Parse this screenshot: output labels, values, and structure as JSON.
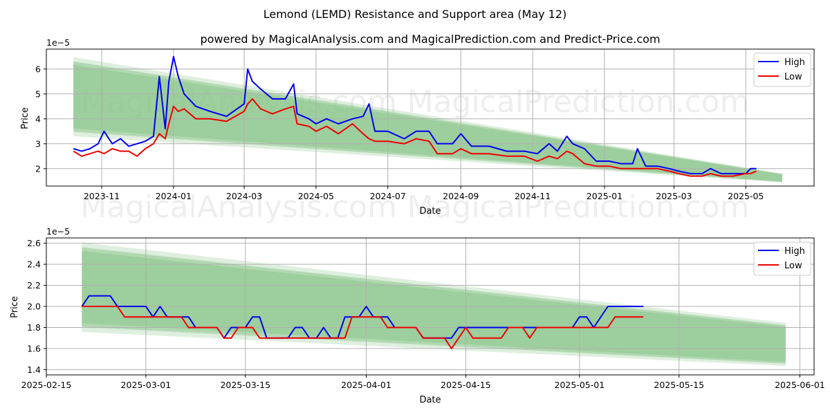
{
  "title": "Lemond (LEMD) Resistance and Support area (May 12)",
  "subtitle": "powered by MagicalAnalysis.com and MagicalPrediction.com and Predict-Price.com",
  "watermarks": [
    "MagicalAnalysis.com",
    "MagicalPrediction.com"
  ],
  "colors": {
    "high": "#0000ee",
    "low": "#ee0000",
    "band": "#8cc68c",
    "grid": "#b0b0b0"
  },
  "chart_data": [
    {
      "type": "line",
      "name": "full-period",
      "xlabel": "Date",
      "ylabel": "Price",
      "scale_label": "1e−5",
      "grid": true,
      "legend": "top-right",
      "xlim": [
        "2023-09-15",
        "2025-06-28"
      ],
      "ylim": [
        1.3,
        6.8
      ],
      "x_ticks": [
        "2023-11",
        "2024-01",
        "2024-03",
        "2024-05",
        "2024-07",
        "2024-09",
        "2024-11",
        "2025-01",
        "2025-03",
        "2025-05"
      ],
      "y_ticks": [
        2,
        3,
        4,
        5,
        6
      ],
      "band": {
        "x_start": "2023-10-08",
        "x_end": "2025-06-01",
        "upper": [
          6.45,
          1.8
        ],
        "lower": [
          3.35,
          1.45
        ]
      },
      "series": [
        {
          "name": "High",
          "color": "#0000ee",
          "points": [
            [
              "2023-10-08",
              2.8
            ],
            [
              "2023-10-15",
              2.7
            ],
            [
              "2023-10-22",
              2.8
            ],
            [
              "2023-10-29",
              3.0
            ],
            [
              "2023-11-03",
              3.5
            ],
            [
              "2023-11-10",
              3.0
            ],
            [
              "2023-11-17",
              3.2
            ],
            [
              "2023-11-24",
              2.9
            ],
            [
              "2023-12-01",
              3.0
            ],
            [
              "2023-12-08",
              3.1
            ],
            [
              "2023-12-15",
              3.3
            ],
            [
              "2023-12-20",
              5.7
            ],
            [
              "2023-12-25",
              3.6
            ],
            [
              "2023-12-28",
              5.5
            ],
            [
              "2024-01-01",
              6.5
            ],
            [
              "2024-01-05",
              5.7
            ],
            [
              "2024-01-10",
              5.0
            ],
            [
              "2024-01-20",
              4.5
            ],
            [
              "2024-02-01",
              4.3
            ],
            [
              "2024-02-15",
              4.1
            ],
            [
              "2024-03-01",
              4.6
            ],
            [
              "2024-03-04",
              6.0
            ],
            [
              "2024-03-08",
              5.5
            ],
            [
              "2024-03-15",
              5.2
            ],
            [
              "2024-03-25",
              4.8
            ],
            [
              "2024-04-05",
              4.8
            ],
            [
              "2024-04-12",
              5.4
            ],
            [
              "2024-04-15",
              4.2
            ],
            [
              "2024-04-25",
              4.0
            ],
            [
              "2024-05-01",
              3.8
            ],
            [
              "2024-05-10",
              4.0
            ],
            [
              "2024-05-20",
              3.8
            ],
            [
              "2024-06-01",
              4.0
            ],
            [
              "2024-06-10",
              4.1
            ],
            [
              "2024-06-15",
              4.6
            ],
            [
              "2024-06-20",
              3.5
            ],
            [
              "2024-07-01",
              3.5
            ],
            [
              "2024-07-15",
              3.2
            ],
            [
              "2024-07-25",
              3.5
            ],
            [
              "2024-08-05",
              3.5
            ],
            [
              "2024-08-12",
              3.0
            ],
            [
              "2024-08-25",
              3.0
            ],
            [
              "2024-09-01",
              3.4
            ],
            [
              "2024-09-10",
              2.9
            ],
            [
              "2024-09-25",
              2.9
            ],
            [
              "2024-10-10",
              2.7
            ],
            [
              "2024-10-25",
              2.7
            ],
            [
              "2024-11-05",
              2.6
            ],
            [
              "2024-11-15",
              3.0
            ],
            [
              "2024-11-22",
              2.7
            ],
            [
              "2024-11-30",
              3.3
            ],
            [
              "2024-12-05",
              3.0
            ],
            [
              "2024-12-15",
              2.8
            ],
            [
              "2024-12-25",
              2.3
            ],
            [
              "2025-01-05",
              2.3
            ],
            [
              "2025-01-15",
              2.2
            ],
            [
              "2025-01-25",
              2.2
            ],
            [
              "2025-01-29",
              2.8
            ],
            [
              "2025-02-05",
              2.1
            ],
            [
              "2025-02-15",
              2.1
            ],
            [
              "2025-02-25",
              2.0
            ],
            [
              "2025-03-05",
              1.9
            ],
            [
              "2025-03-15",
              1.8
            ],
            [
              "2025-03-25",
              1.8
            ],
            [
              "2025-04-01",
              2.0
            ],
            [
              "2025-04-10",
              1.8
            ],
            [
              "2025-04-20",
              1.8
            ],
            [
              "2025-05-01",
              1.8
            ],
            [
              "2025-05-05",
              2.0
            ],
            [
              "2025-05-10",
              2.0
            ]
          ]
        },
        {
          "name": "Low",
          "color": "#ee0000",
          "points": [
            [
              "2023-10-08",
              2.7
            ],
            [
              "2023-10-15",
              2.5
            ],
            [
              "2023-10-22",
              2.6
            ],
            [
              "2023-10-29",
              2.7
            ],
            [
              "2023-11-03",
              2.6
            ],
            [
              "2023-11-10",
              2.8
            ],
            [
              "2023-11-17",
              2.7
            ],
            [
              "2023-11-24",
              2.7
            ],
            [
              "2023-12-01",
              2.5
            ],
            [
              "2023-12-08",
              2.8
            ],
            [
              "2023-12-15",
              3.0
            ],
            [
              "2023-12-20",
              3.4
            ],
            [
              "2023-12-25",
              3.2
            ],
            [
              "2023-12-28",
              3.8
            ],
            [
              "2024-01-01",
              4.5
            ],
            [
              "2024-01-05",
              4.3
            ],
            [
              "2024-01-10",
              4.4
            ],
            [
              "2024-01-20",
              4.0
            ],
            [
              "2024-02-01",
              4.0
            ],
            [
              "2024-02-15",
              3.9
            ],
            [
              "2024-03-01",
              4.3
            ],
            [
              "2024-03-04",
              4.6
            ],
            [
              "2024-03-08",
              4.8
            ],
            [
              "2024-03-15",
              4.4
            ],
            [
              "2024-03-25",
              4.2
            ],
            [
              "2024-04-05",
              4.4
            ],
            [
              "2024-04-12",
              4.5
            ],
            [
              "2024-04-15",
              3.8
            ],
            [
              "2024-04-25",
              3.7
            ],
            [
              "2024-05-01",
              3.5
            ],
            [
              "2024-05-10",
              3.7
            ],
            [
              "2024-05-20",
              3.4
            ],
            [
              "2024-06-01",
              3.8
            ],
            [
              "2024-06-10",
              3.4
            ],
            [
              "2024-06-15",
              3.2
            ],
            [
              "2024-06-20",
              3.1
            ],
            [
              "2024-07-01",
              3.1
            ],
            [
              "2024-07-15",
              3.0
            ],
            [
              "2024-07-25",
              3.2
            ],
            [
              "2024-08-05",
              3.1
            ],
            [
              "2024-08-12",
              2.6
            ],
            [
              "2024-08-25",
              2.6
            ],
            [
              "2024-09-01",
              2.8
            ],
            [
              "2024-09-10",
              2.6
            ],
            [
              "2024-09-25",
              2.6
            ],
            [
              "2024-10-10",
              2.5
            ],
            [
              "2024-10-25",
              2.5
            ],
            [
              "2024-11-05",
              2.3
            ],
            [
              "2024-11-15",
              2.5
            ],
            [
              "2024-11-22",
              2.4
            ],
            [
              "2024-11-30",
              2.7
            ],
            [
              "2024-12-05",
              2.6
            ],
            [
              "2024-12-15",
              2.2
            ],
            [
              "2024-12-25",
              2.1
            ],
            [
              "2025-01-05",
              2.1
            ],
            [
              "2025-01-15",
              2.0
            ],
            [
              "2025-01-25",
              2.0
            ],
            [
              "2025-01-29",
              2.0
            ],
            [
              "2025-02-05",
              2.0
            ],
            [
              "2025-02-15",
              2.0
            ],
            [
              "2025-02-25",
              1.9
            ],
            [
              "2025-03-05",
              1.8
            ],
            [
              "2025-03-15",
              1.7
            ],
            [
              "2025-03-25",
              1.7
            ],
            [
              "2025-04-01",
              1.8
            ],
            [
              "2025-04-10",
              1.7
            ],
            [
              "2025-04-20",
              1.7
            ],
            [
              "2025-05-01",
              1.8
            ],
            [
              "2025-05-05",
              1.8
            ],
            [
              "2025-05-10",
              1.9
            ]
          ]
        }
      ]
    },
    {
      "type": "line",
      "name": "zoomed-period",
      "xlabel": "Date",
      "ylabel": "Price",
      "scale_label": "1e−5",
      "grid": true,
      "legend": "top-right",
      "xlim": [
        "2025-02-15",
        "2025-06-03"
      ],
      "ylim": [
        1.35,
        2.65
      ],
      "x_ticks": [
        "2025-02-15",
        "2025-03-01",
        "2025-03-15",
        "2025-04-01",
        "2025-04-15",
        "2025-05-01",
        "2025-05-15",
        "2025-06-01"
      ],
      "y_ticks": [
        1.4,
        1.6,
        1.8,
        2.0,
        2.2,
        2.4,
        2.6
      ],
      "band": {
        "x_start": "2025-02-20",
        "x_end": "2025-05-30",
        "upper": [
          2.6,
          1.84
        ],
        "lower": [
          1.77,
          1.44
        ]
      },
      "series": [
        {
          "name": "High",
          "color": "#0000ee",
          "points": [
            [
              "2025-02-20",
              2.0
            ],
            [
              "2025-02-21",
              2.1
            ],
            [
              "2025-02-24",
              2.1
            ],
            [
              "2025-02-25",
              2.0
            ],
            [
              "2025-03-01",
              2.0
            ],
            [
              "2025-03-02",
              1.9
            ],
            [
              "2025-03-03",
              2.0
            ],
            [
              "2025-03-04",
              1.9
            ],
            [
              "2025-03-07",
              1.9
            ],
            [
              "2025-03-08",
              1.8
            ],
            [
              "2025-03-11",
              1.8
            ],
            [
              "2025-03-12",
              1.7
            ],
            [
              "2025-03-13",
              1.8
            ],
            [
              "2025-03-15",
              1.8
            ],
            [
              "2025-03-16",
              1.9
            ],
            [
              "2025-03-17",
              1.9
            ],
            [
              "2025-03-18",
              1.7
            ],
            [
              "2025-03-21",
              1.7
            ],
            [
              "2025-03-22",
              1.8
            ],
            [
              "2025-03-23",
              1.8
            ],
            [
              "2025-03-24",
              1.7
            ],
            [
              "2025-03-25",
              1.7
            ],
            [
              "2025-03-26",
              1.8
            ],
            [
              "2025-03-27",
              1.7
            ],
            [
              "2025-03-28",
              1.7
            ],
            [
              "2025-03-29",
              1.9
            ],
            [
              "2025-03-30",
              1.9
            ],
            [
              "2025-03-31",
              1.9
            ],
            [
              "2025-04-01",
              2.0
            ],
            [
              "2025-04-02",
              1.9
            ],
            [
              "2025-04-04",
              1.9
            ],
            [
              "2025-04-05",
              1.8
            ],
            [
              "2025-04-08",
              1.8
            ],
            [
              "2025-04-09",
              1.7
            ],
            [
              "2025-04-13",
              1.7
            ],
            [
              "2025-04-14",
              1.8
            ],
            [
              "2025-04-20",
              1.8
            ],
            [
              "2025-04-21",
              1.8
            ],
            [
              "2025-04-29",
              1.8
            ],
            [
              "2025-04-30",
              1.8
            ],
            [
              "2025-05-01",
              1.9
            ],
            [
              "2025-05-02",
              1.9
            ],
            [
              "2025-05-03",
              1.8
            ],
            [
              "2025-05-05",
              2.0
            ],
            [
              "2025-05-10",
              2.0
            ]
          ]
        },
        {
          "name": "Low",
          "color": "#ee0000",
          "points": [
            [
              "2025-02-20",
              2.0
            ],
            [
              "2025-02-25",
              2.0
            ],
            [
              "2025-02-26",
              1.9
            ],
            [
              "2025-03-06",
              1.9
            ],
            [
              "2025-03-07",
              1.8
            ],
            [
              "2025-03-11",
              1.8
            ],
            [
              "2025-03-12",
              1.7
            ],
            [
              "2025-03-13",
              1.7
            ],
            [
              "2025-03-14",
              1.8
            ],
            [
              "2025-03-16",
              1.8
            ],
            [
              "2025-03-17",
              1.7
            ],
            [
              "2025-03-29",
              1.7
            ],
            [
              "2025-03-30",
              1.9
            ],
            [
              "2025-04-03",
              1.9
            ],
            [
              "2025-04-04",
              1.8
            ],
            [
              "2025-04-08",
              1.8
            ],
            [
              "2025-04-09",
              1.7
            ],
            [
              "2025-04-11",
              1.7
            ],
            [
              "2025-04-12",
              1.7
            ],
            [
              "2025-04-13",
              1.6
            ],
            [
              "2025-04-14",
              1.7
            ],
            [
              "2025-04-15",
              1.8
            ],
            [
              "2025-04-16",
              1.7
            ],
            [
              "2025-04-20",
              1.7
            ],
            [
              "2025-04-21",
              1.8
            ],
            [
              "2025-04-23",
              1.8
            ],
            [
              "2025-04-24",
              1.7
            ],
            [
              "2025-04-25",
              1.8
            ],
            [
              "2025-05-05",
              1.8
            ],
            [
              "2025-05-06",
              1.9
            ],
            [
              "2025-05-10",
              1.9
            ]
          ]
        }
      ]
    }
  ]
}
